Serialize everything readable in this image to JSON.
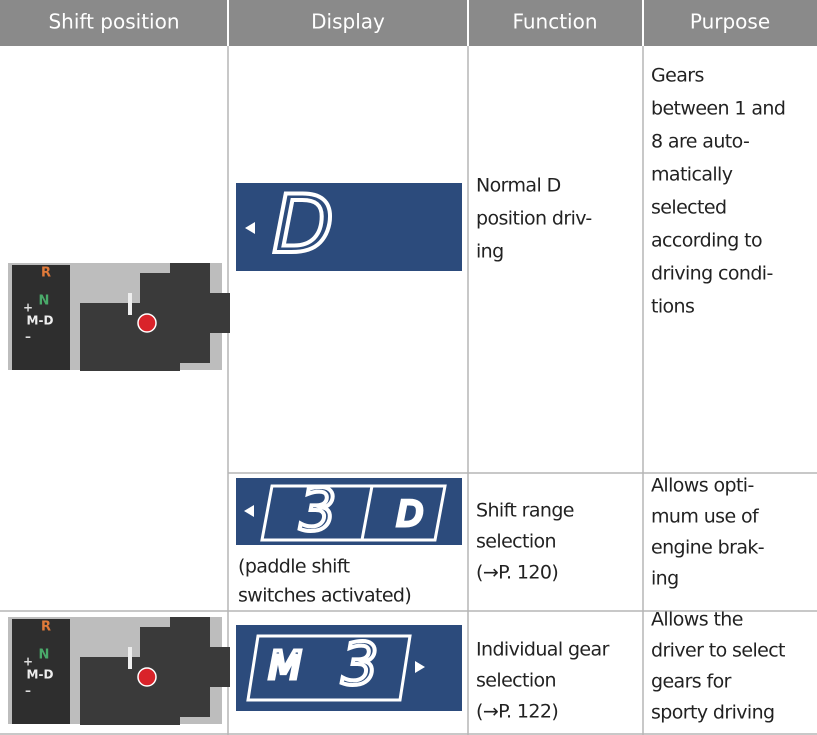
{
  "header": [
    "Shift position",
    "Display",
    "Function",
    "Purpose"
  ],
  "shifter_labels": [
    "R",
    "N",
    "+",
    "M-D",
    "–"
  ],
  "rows": [
    {
      "display_glyphs": [
        "D"
      ],
      "function": [
        "Normal D",
        "position driv-",
        "ing"
      ],
      "purpose": [
        "Gears",
        "between 1 and",
        "8 are auto-",
        "matically",
        "selected",
        "according to",
        "driving condi-",
        "tions"
      ]
    },
    {
      "display_glyphs": [
        "3",
        "D"
      ],
      "display_note": [
        "(paddle shift",
        "switches activated)"
      ],
      "function": [
        "Shift range",
        "selection",
        "(→P. 120)"
      ],
      "purpose": [
        "Allows opti-",
        "mum use of",
        "engine brak-",
        "ing"
      ]
    },
    {
      "display_glyphs": [
        "M",
        "3"
      ],
      "function": [
        "Individual gear",
        "selection",
        "(→P. 122)"
      ],
      "purpose": [
        "Allows the",
        "driver to select",
        "gears for",
        "sporty driving"
      ]
    }
  ]
}
